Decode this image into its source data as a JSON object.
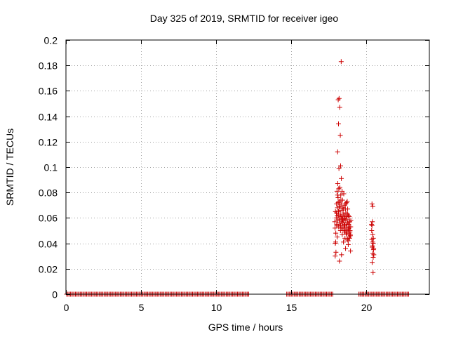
{
  "chart_data": {
    "type": "scatter",
    "title": "Day 325 of 2019, SRMTID for receiver igeo",
    "xlabel": "GPS time / hours",
    "ylabel": "SRMTID / TECUs",
    "xlim": [
      0,
      24.2
    ],
    "ylim": [
      0,
      0.2
    ],
    "xticks": [
      0,
      5,
      10,
      15,
      20
    ],
    "xtick_labels": [
      "0",
      "5",
      "10",
      "15",
      "20"
    ],
    "yticks": [
      0,
      0.02,
      0.04,
      0.06,
      0.08,
      0.1,
      0.12,
      0.14,
      0.16,
      0.18,
      0.2
    ],
    "ytick_labels": [
      "0",
      "0.02",
      "0.04",
      "0.06",
      "0.08",
      "0.1",
      "0.12",
      "0.14",
      "0.16",
      "0.18",
      "0.2"
    ],
    "grid": true,
    "marker": "+",
    "color": "#cc0000",
    "zero_series_ranges": [
      [
        0.05,
        12.25
      ],
      [
        14.7,
        17.8
      ],
      [
        19.5,
        22.9
      ]
    ],
    "zero_series_step": 0.083,
    "series": [
      {
        "name": "SRMTID",
        "x": [
          17.9,
          17.92,
          17.95,
          17.97,
          17.98,
          18.0,
          18.02,
          18.03,
          18.05,
          18.06,
          18.08,
          18.1,
          18.11,
          18.12,
          18.14,
          18.16,
          18.18,
          18.2,
          18.22,
          18.24,
          18.26,
          18.28,
          18.3,
          18.32,
          18.34,
          18.36,
          18.38,
          18.4,
          18.42,
          18.44,
          18.46,
          18.48,
          18.5,
          18.52,
          18.54,
          18.56,
          18.58,
          18.6,
          18.62,
          18.64,
          18.66,
          18.68,
          18.7,
          18.72,
          18.74,
          18.76,
          18.78,
          18.8,
          18.82,
          18.84,
          18.86,
          18.88,
          18.9,
          18.92,
          18.94,
          18.96,
          17.93,
          18.01,
          18.09,
          18.13,
          18.17,
          18.21,
          18.25,
          18.29,
          18.33,
          18.37,
          18.41,
          18.45,
          18.49,
          18.53,
          18.57,
          18.61,
          18.65,
          18.69,
          18.73,
          18.77,
          18.81,
          18.85,
          18.89,
          18.93,
          17.96,
          18.04,
          18.15,
          18.19,
          18.23,
          18.27,
          18.31,
          18.35,
          18.39,
          18.43,
          18.47,
          18.51,
          18.55,
          18.59,
          18.63,
          18.67,
          18.71,
          18.75,
          18.79,
          18.83,
          18.87,
          18.91,
          18.95,
          18.97,
          17.94,
          18.07,
          18.21,
          18.35,
          18.33,
          18.13,
          18.19,
          18.23,
          18.15,
          18.27,
          18.09,
          18.29,
          20.35,
          20.37,
          20.38,
          20.4,
          20.42,
          20.43,
          20.45,
          20.46,
          20.48,
          20.5,
          20.36,
          20.39,
          20.41,
          20.44,
          20.47,
          20.49,
          20.38,
          20.43,
          20.46,
          20.4
        ],
        "y": [
          0.057,
          0.052,
          0.065,
          0.048,
          0.033,
          0.06,
          0.071,
          0.055,
          0.081,
          0.045,
          0.068,
          0.087,
          0.058,
          0.076,
          0.062,
          0.053,
          0.099,
          0.073,
          0.056,
          0.084,
          0.069,
          0.05,
          0.078,
          0.061,
          0.091,
          0.057,
          0.066,
          0.047,
          0.074,
          0.052,
          0.063,
          0.041,
          0.079,
          0.055,
          0.049,
          0.07,
          0.044,
          0.058,
          0.036,
          0.064,
          0.053,
          0.072,
          0.047,
          0.059,
          0.043,
          0.067,
          0.051,
          0.039,
          0.055,
          0.048,
          0.061,
          0.044,
          0.057,
          0.05,
          0.046,
          0.053,
          0.03,
          0.064,
          0.078,
          0.072,
          0.083,
          0.059,
          0.066,
          0.054,
          0.071,
          0.06,
          0.056,
          0.068,
          0.058,
          0.062,
          0.054,
          0.067,
          0.061,
          0.049,
          0.073,
          0.056,
          0.062,
          0.045,
          0.053,
          0.047,
          0.041,
          0.054,
          0.065,
          0.069,
          0.058,
          0.063,
          0.074,
          0.052,
          0.081,
          0.059,
          0.067,
          0.052,
          0.06,
          0.05,
          0.071,
          0.048,
          0.056,
          0.063,
          0.042,
          0.052,
          0.045,
          0.049,
          0.034,
          0.058,
          0.04,
          0.062,
          0.026,
          0.031,
          0.183,
          0.153,
          0.154,
          0.147,
          0.134,
          0.125,
          0.112,
          0.101,
          0.055,
          0.043,
          0.071,
          0.037,
          0.047,
          0.069,
          0.017,
          0.04,
          0.035,
          0.031,
          0.05,
          0.025,
          0.038,
          0.032,
          0.044,
          0.036,
          0.054,
          0.041,
          0.029,
          0.057
        ]
      }
    ]
  }
}
